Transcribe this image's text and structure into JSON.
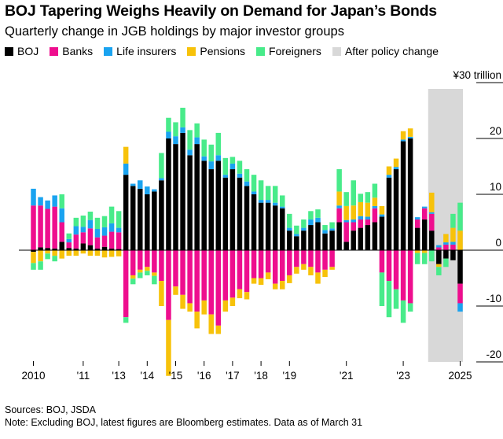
{
  "title": "BOJ Tapering Weighs Heavily on Demand for Japan’s Bonds",
  "subtitle": "Quarterly change in JGB holdings by major investor groups",
  "legend": [
    {
      "label": "BOJ",
      "color": "#000000"
    },
    {
      "label": "Banks",
      "color": "#ee0e8e"
    },
    {
      "label": "Life insurers",
      "color": "#1aa3f0"
    },
    {
      "label": "Pensions",
      "color": "#f7c20a"
    },
    {
      "label": "Foreigners",
      "color": "#48eb8a"
    },
    {
      "label": "After policy change",
      "color": "#d8d8d8"
    }
  ],
  "sources": "Sources: BOJ, JSDA",
  "note": "Note: Excluding BOJ, latest figures are Bloomberg estimates. Data as of March 31",
  "chart_data": {
    "type": "bar",
    "stacked": true,
    "unit": "¥30 trillion",
    "ylim": [
      -20,
      30
    ],
    "yticks": [
      {
        "value": 30,
        "label": "¥30 trillion"
      },
      {
        "value": 20,
        "label": "20"
      },
      {
        "value": 10,
        "label": "10"
      },
      {
        "value": 0,
        "label": "0"
      },
      {
        "value": -10,
        "label": "-10"
      },
      {
        "value": -20,
        "label": "-20"
      }
    ],
    "xticks": [
      {
        "index": 0,
        "label": "2010"
      },
      {
        "index": 7,
        "label": "'11"
      },
      {
        "index": 12,
        "label": "'13"
      },
      {
        "index": 16,
        "label": "'14"
      },
      {
        "index": 20,
        "label": "'15"
      },
      {
        "index": 24,
        "label": "'16"
      },
      {
        "index": 28,
        "label": "'17"
      },
      {
        "index": 32,
        "label": "'18"
      },
      {
        "index": 36,
        "label": "'19"
      },
      {
        "index": 44,
        "label": "'21"
      },
      {
        "index": 52,
        "label": "'23"
      },
      {
        "index": 60,
        "label": "2025"
      }
    ],
    "shaded_region": {
      "label": "After policy change",
      "from_index": 56,
      "to_index": 60
    },
    "series_colors": {
      "boj": "#000000",
      "banks": "#ee0e8e",
      "life": "#1aa3f0",
      "pensions": "#f7c20a",
      "foreigners": "#48eb8a"
    },
    "series": [
      {
        "name": "BOJ",
        "key": "boj",
        "values": [
          -0.3,
          0.5,
          0.4,
          0.3,
          1.5,
          0.4,
          0.3,
          1.2,
          0.9,
          0.3,
          0.6,
          0.3,
          0.2,
          13.5,
          11.5,
          11.0,
          10.0,
          10.5,
          12.5,
          20.0,
          19.0,
          21.0,
          17.0,
          19.0,
          16.0,
          14.5,
          16.0,
          13.0,
          14.5,
          13.0,
          11.5,
          10.0,
          8.5,
          8.5,
          8.0,
          7.5,
          3.5,
          2.5,
          3.5,
          4.5,
          5.0,
          3.0,
          3.5,
          5.0,
          1.5,
          3.5,
          4.0,
          4.5,
          5.0,
          6.0,
          13.0,
          14.5,
          19.5,
          20.0,
          4.0,
          5.5,
          3.5,
          -2.5,
          -1.5,
          -1.8,
          -6.0
        ]
      },
      {
        "name": "Banks",
        "key": "banks",
        "values": [
          8.0,
          7.5,
          7.0,
          7.5,
          3.5,
          1.0,
          2.5,
          2.0,
          3.0,
          2.0,
          2.0,
          3.0,
          3.0,
          -12.0,
          -4.5,
          -3.5,
          -3.0,
          -4.0,
          -5.5,
          -12.5,
          -6.5,
          -8.0,
          -9.5,
          -11.0,
          -9.0,
          -11.5,
          -13.5,
          -9.0,
          -8.5,
          -7.0,
          -7.5,
          -5.0,
          -5.0,
          -4.0,
          -6.0,
          -5.5,
          -4.5,
          -3.0,
          -2.5,
          -3.0,
          -4.0,
          -3.5,
          -3.0,
          2.5,
          3.5,
          1.5,
          1.5,
          1.0,
          2.5,
          -4.0,
          -5.5,
          -7.0,
          -9.0,
          -9.5,
          1.5,
          2.0,
          3.0,
          0.5,
          1.0,
          1.0,
          -3.5
        ]
      },
      {
        "name": "Life insurers",
        "key": "life",
        "values": [
          3.0,
          1.5,
          1.5,
          2.0,
          2.5,
          0.6,
          1.5,
          1.0,
          1.5,
          1.5,
          1.5,
          1.5,
          0.8,
          2.0,
          0.4,
          1.5,
          1.4,
          0.4,
          0.4,
          1.2,
          1.4,
          1.0,
          1.0,
          1.2,
          0.8,
          1.4,
          1.0,
          0.5,
          1.0,
          0.7,
          0.8,
          0.5,
          0.5,
          0.5,
          0.5,
          0.3,
          0.5,
          0.4,
          0.5,
          1.0,
          0.8,
          0.6,
          0.4,
          0.5,
          0.4,
          0.5,
          0.6,
          0.5,
          0.4,
          0.4,
          0.5,
          0.4,
          0.3,
          0.3,
          0.4,
          0.3,
          0.3,
          0.4,
          0.4,
          0.5,
          -1.5
        ]
      },
      {
        "name": "Pensions",
        "key": "pensions",
        "values": [
          -2.0,
          -2.0,
          -0.6,
          -1.0,
          -1.5,
          -1.0,
          -1.0,
          -0.6,
          -1.0,
          -1.0,
          -1.3,
          -1.2,
          -1.1,
          3.0,
          -0.6,
          -0.5,
          -0.7,
          -0.6,
          -4.5,
          -10.0,
          -1.5,
          -2.5,
          -1.5,
          -3.0,
          -2.5,
          -3.5,
          -1.5,
          -2.0,
          -1.5,
          -1.6,
          -1.3,
          -1.0,
          -1.2,
          -1.2,
          -1.0,
          -1.5,
          -1.4,
          -1.2,
          -1.0,
          -1.5,
          -2.0,
          -1.3,
          -0.5,
          2.5,
          2.5,
          2.5,
          2.5,
          2.5,
          1.5,
          1.5,
          1.5,
          1.5,
          1.5,
          1.5,
          -0.5,
          -0.5,
          3.5,
          -0.5,
          1.5,
          2.5,
          3.5
        ]
      },
      {
        "name": "Foreigners",
        "key": "foreigners",
        "values": [
          -1.2,
          -1.5,
          -1.0,
          -1.0,
          2.5,
          1.0,
          1.5,
          2.0,
          1.5,
          2.0,
          2.0,
          3.0,
          3.0,
          -1.0,
          -1.0,
          -1.0,
          -0.8,
          -1.5,
          4.5,
          2.5,
          2.5,
          3.5,
          3.5,
          2.5,
          3.0,
          3.0,
          4.0,
          3.0,
          1.2,
          2.3,
          2.2,
          3.0,
          3.5,
          2.5,
          3.0,
          2.0,
          2.5,
          1.5,
          1.5,
          1.5,
          1.5,
          0.9,
          1.1,
          4.0,
          2.5,
          4.5,
          1.5,
          1.9,
          2.5,
          -6.0,
          -6.5,
          -3.5,
          -4.0,
          -1.5,
          -2.0,
          -2.0,
          -2.0,
          -1.5,
          -1.5,
          2.5,
          5.0
        ]
      }
    ]
  }
}
